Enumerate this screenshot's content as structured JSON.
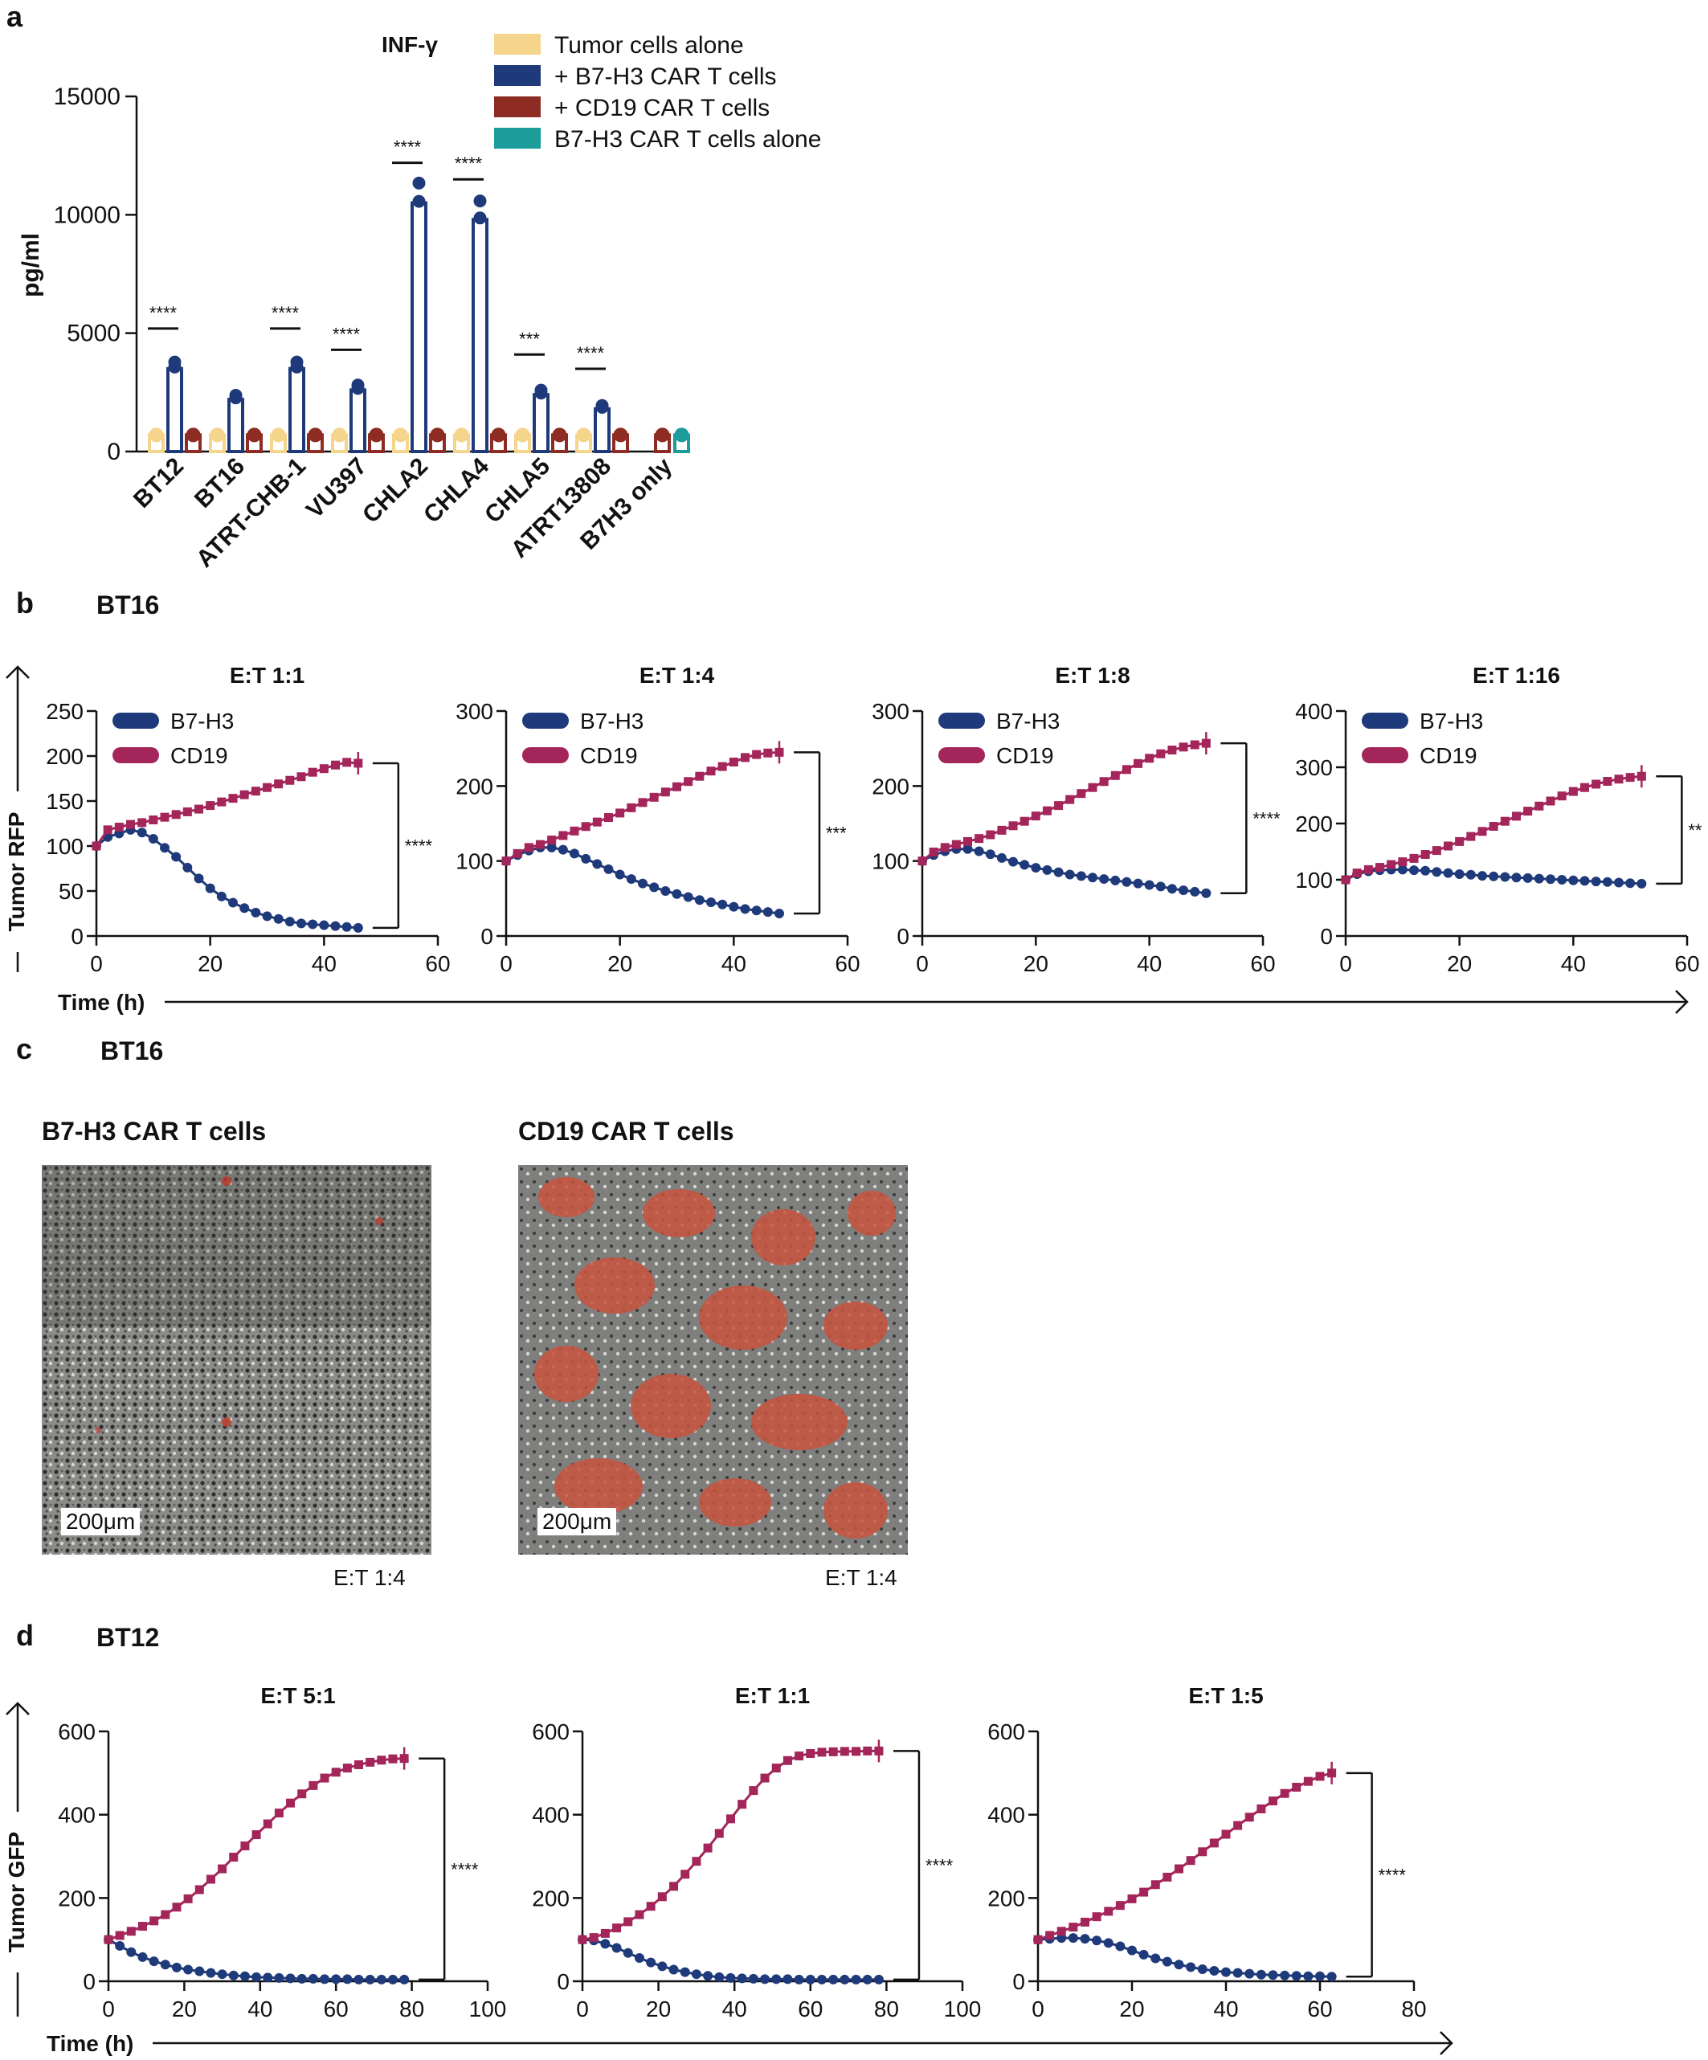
{
  "panels": {
    "a": {
      "label": "a"
    },
    "b": {
      "label": "b",
      "sample": "BT16",
      "ylabel": "Tumor RFP",
      "xlabel": "Time (h)"
    },
    "c": {
      "label": "c",
      "sample": "BT16",
      "images": [
        {
          "title": "B7-H3 CAR T cells",
          "scale": "200μm",
          "et": "E:T 1:4"
        },
        {
          "title": "CD19 CAR T cells",
          "scale": "200μm",
          "et": "E:T 1:4"
        }
      ]
    },
    "d": {
      "label": "d",
      "sample": "BT12",
      "ylabel": "Tumor GFP",
      "xlabel": "Time (h)"
    }
  },
  "colors": {
    "tumor": "#F5D48C",
    "b7h3": "#1F3A7A",
    "cd19": "#8E2C24",
    "carAlone": "#1C9C9A",
    "cd19Line": "#A3255A"
  },
  "chart_data": [
    {
      "id": "a",
      "type": "bar",
      "title": "INF-γ",
      "ylabel": "pg/ml",
      "ylim": [
        0,
        15000
      ],
      "yticks": [
        "0",
        "5000",
        "10000",
        "15000"
      ],
      "legend": [
        "Tumor cells alone",
        "+ B7-H3 CAR T cells",
        "+ CD19 CAR T cells",
        "B7-H3 CAR T cells alone"
      ],
      "categories": [
        "BT12",
        "BT16",
        "ATRT-CHB-1",
        "VU397",
        "CHLA2",
        "CHLA4",
        "CHLA5",
        "ATRT13808",
        "B7H3 only"
      ],
      "series": [
        {
          "name": "Tumor cells alone",
          "values": [
            700,
            700,
            700,
            700,
            700,
            700,
            700,
            700,
            null
          ]
        },
        {
          "name": "+ B7-H3 CAR T cells",
          "values": [
            3500,
            2200,
            3500,
            2600,
            10500,
            9800,
            2400,
            1800,
            null
          ]
        },
        {
          "name": "+ CD19 CAR T cells",
          "values": [
            700,
            700,
            700,
            700,
            700,
            700,
            700,
            700,
            700
          ]
        },
        {
          "name": "B7-H3 CAR T cells alone",
          "values": [
            null,
            null,
            null,
            null,
            null,
            null,
            null,
            null,
            700
          ]
        }
      ],
      "significance": [
        "****",
        "",
        "****",
        "****",
        "****",
        "****",
        "***",
        "****",
        ""
      ]
    },
    {
      "id": "b1",
      "type": "line",
      "title": "E:T 1:1",
      "xlim": [
        0,
        60
      ],
      "ylim": [
        0,
        250
      ],
      "xticks": [
        "0",
        "20",
        "40",
        "60"
      ],
      "yticks": [
        "0",
        "50",
        "100",
        "150",
        "200",
        "250"
      ],
      "significance": "****",
      "x": [
        0,
        2,
        4,
        6,
        8,
        10,
        12,
        14,
        16,
        18,
        20,
        22,
        24,
        26,
        28,
        30,
        32,
        34,
        36,
        38,
        40,
        42,
        44,
        46
      ],
      "series": [
        {
          "name": "B7-H3",
          "values": [
            100,
            110,
            114,
            118,
            115,
            108,
            98,
            88,
            76,
            64,
            53,
            44,
            37,
            31,
            26,
            22,
            19,
            16,
            14,
            13,
            12,
            11,
            10,
            9
          ]
        },
        {
          "name": "CD19",
          "values": [
            100,
            118,
            121,
            124,
            126,
            129,
            132,
            135,
            138,
            141,
            145,
            149,
            153,
            157,
            161,
            165,
            169,
            173,
            177,
            182,
            186,
            190,
            193,
            192
          ]
        }
      ]
    },
    {
      "id": "b2",
      "type": "line",
      "title": "E:T 1:4",
      "xlim": [
        0,
        60
      ],
      "ylim": [
        0,
        300
      ],
      "xticks": [
        "0",
        "20",
        "40",
        "60"
      ],
      "yticks": [
        "0",
        "100",
        "200",
        "300"
      ],
      "significance": "***",
      "x": [
        0,
        2,
        4,
        6,
        8,
        10,
        12,
        14,
        16,
        18,
        20,
        22,
        24,
        26,
        28,
        30,
        32,
        34,
        36,
        38,
        40,
        42,
        44,
        46,
        48
      ],
      "series": [
        {
          "name": "B7-H3",
          "values": [
            100,
            108,
            114,
            118,
            118,
            115,
            110,
            103,
            96,
            89,
            82,
            76,
            70,
            65,
            60,
            56,
            52,
            48,
            45,
            42,
            39,
            36,
            34,
            32,
            30
          ]
        },
        {
          "name": "CD19",
          "values": [
            100,
            110,
            118,
            122,
            128,
            134,
            140,
            146,
            152,
            158,
            164,
            171,
            178,
            185,
            192,
            199,
            206,
            213,
            220,
            226,
            232,
            238,
            242,
            244,
            245
          ]
        }
      ]
    },
    {
      "id": "b3",
      "type": "line",
      "title": "E:T 1:8",
      "xlim": [
        0,
        60
      ],
      "ylim": [
        0,
        300
      ],
      "xticks": [
        "0",
        "20",
        "40",
        "60"
      ],
      "yticks": [
        "0",
        "100",
        "200",
        "300"
      ],
      "significance": "****",
      "x": [
        0,
        2,
        4,
        6,
        8,
        10,
        12,
        14,
        16,
        18,
        20,
        22,
        24,
        26,
        28,
        30,
        32,
        34,
        36,
        38,
        40,
        42,
        44,
        46,
        48,
        50
      ],
      "series": [
        {
          "name": "B7-H3",
          "values": [
            100,
            108,
            113,
            116,
            116,
            113,
            109,
            104,
            99,
            95,
            91,
            88,
            85,
            82,
            80,
            78,
            76,
            74,
            72,
            70,
            68,
            66,
            63,
            61,
            59,
            57
          ]
        },
        {
          "name": "CD19",
          "values": [
            100,
            112,
            118,
            122,
            126,
            130,
            135,
            141,
            147,
            153,
            160,
            167,
            174,
            182,
            190,
            198,
            206,
            214,
            222,
            230,
            237,
            243,
            248,
            252,
            255,
            257
          ]
        }
      ]
    },
    {
      "id": "b4",
      "type": "line",
      "title": "E:T 1:16",
      "xlim": [
        0,
        60
      ],
      "ylim": [
        0,
        400
      ],
      "xticks": [
        "0",
        "20",
        "40",
        "60"
      ],
      "yticks": [
        "0",
        "100",
        "200",
        "300",
        "400"
      ],
      "significance": "**",
      "x": [
        0,
        2,
        4,
        6,
        8,
        10,
        12,
        14,
        16,
        18,
        20,
        22,
        24,
        26,
        28,
        30,
        32,
        34,
        36,
        38,
        40,
        42,
        44,
        46,
        48,
        50,
        52
      ],
      "series": [
        {
          "name": "B7-H3",
          "values": [
            100,
            110,
            115,
            117,
            118,
            118,
            117,
            116,
            114,
            112,
            110,
            109,
            107,
            106,
            105,
            104,
            103,
            102,
            101,
            100,
            99,
            98,
            97,
            96,
            95,
            94,
            93
          ]
        },
        {
          "name": "CD19",
          "values": [
            100,
            112,
            118,
            122,
            127,
            132,
            138,
            145,
            152,
            160,
            168,
            177,
            186,
            195,
            204,
            213,
            222,
            231,
            240,
            249,
            257,
            264,
            270,
            275,
            279,
            282,
            284
          ]
        }
      ]
    },
    {
      "id": "d1",
      "type": "line",
      "title": "E:T 5:1",
      "xlim": [
        0,
        100
      ],
      "ylim": [
        0,
        600
      ],
      "xticks": [
        "0",
        "20",
        "40",
        "60",
        "80",
        "100"
      ],
      "yticks": [
        "0",
        "200",
        "400",
        "600"
      ],
      "significance": "****",
      "x": [
        0,
        3,
        6,
        9,
        12,
        15,
        18,
        21,
        24,
        27,
        30,
        33,
        36,
        39,
        42,
        45,
        48,
        51,
        54,
        57,
        60,
        63,
        66,
        69,
        72,
        75,
        78
      ],
      "series": [
        {
          "name": "B7-H3",
          "values": [
            100,
            85,
            70,
            58,
            48,
            40,
            33,
            28,
            24,
            20,
            17,
            14,
            12,
            10,
            9,
            8,
            7,
            6,
            6,
            5,
            5,
            5,
            4,
            4,
            4,
            4,
            4
          ]
        },
        {
          "name": "CD19",
          "values": [
            100,
            110,
            120,
            132,
            145,
            160,
            178,
            198,
            220,
            245,
            270,
            298,
            325,
            352,
            378,
            404,
            428,
            450,
            470,
            488,
            502,
            512,
            520,
            526,
            531,
            534,
            535
          ]
        }
      ]
    },
    {
      "id": "d2",
      "type": "line",
      "title": "E:T 1:1",
      "xlim": [
        0,
        100
      ],
      "ylim": [
        0,
        600
      ],
      "xticks": [
        "0",
        "20",
        "40",
        "60",
        "80",
        "100"
      ],
      "yticks": [
        "0",
        "200",
        "400",
        "600"
      ],
      "significance": "****",
      "x": [
        0,
        3,
        6,
        9,
        12,
        15,
        18,
        21,
        24,
        27,
        30,
        33,
        36,
        39,
        42,
        45,
        48,
        51,
        54,
        57,
        60,
        63,
        66,
        69,
        72,
        75,
        78
      ],
      "series": [
        {
          "name": "B7-H3",
          "values": [
            100,
            98,
            90,
            80,
            68,
            56,
            45,
            36,
            28,
            22,
            17,
            13,
            10,
            8,
            7,
            6,
            5,
            5,
            5,
            4,
            4,
            4,
            4,
            4,
            4,
            4,
            4
          ]
        },
        {
          "name": "CD19",
          "values": [
            100,
            105,
            115,
            128,
            143,
            160,
            180,
            203,
            228,
            257,
            288,
            320,
            355,
            390,
            425,
            458,
            488,
            512,
            530,
            541,
            547,
            550,
            551,
            552,
            552,
            553,
            553
          ]
        }
      ]
    },
    {
      "id": "d3",
      "type": "line",
      "title": "E:T 1:5",
      "xlim": [
        0,
        80
      ],
      "ylim": [
        0,
        600
      ],
      "xticks": [
        "0",
        "20",
        "40",
        "60",
        "80"
      ],
      "yticks": [
        "0",
        "200",
        "400",
        "600"
      ],
      "significance": "****",
      "x": [
        0,
        2.5,
        5,
        7.5,
        10,
        12.5,
        15,
        17.5,
        20,
        22.5,
        25,
        27.5,
        30,
        32.5,
        35,
        37.5,
        40,
        42.5,
        45,
        47.5,
        50,
        52.5,
        55,
        57.5,
        60,
        62.5
      ],
      "series": [
        {
          "name": "B7-H3",
          "values": [
            100,
            102,
            104,
            104,
            102,
            98,
            92,
            84,
            74,
            64,
            55,
            47,
            40,
            34,
            29,
            25,
            22,
            20,
            18,
            16,
            15,
            14,
            13,
            12,
            12,
            11
          ]
        },
        {
          "name": "CD19",
          "values": [
            100,
            110,
            120,
            130,
            142,
            155,
            168,
            182,
            198,
            214,
            232,
            250,
            270,
            290,
            311,
            332,
            353,
            374,
            394,
            414,
            433,
            451,
            466,
            480,
            492,
            500
          ]
        }
      ]
    }
  ]
}
